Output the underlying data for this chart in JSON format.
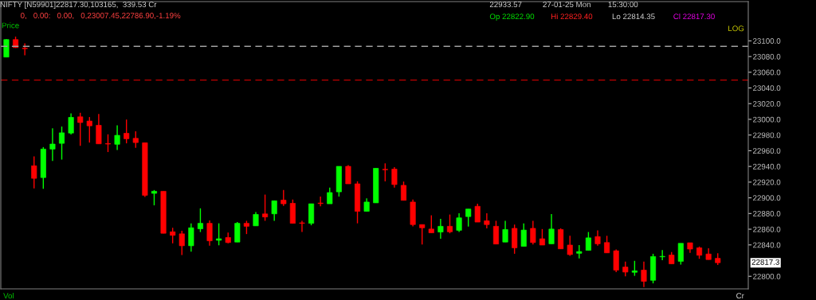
{
  "chart_data": {
    "type": "candlestick",
    "categories": [
      null,
      null,
      null,
      null,
      null,
      null,
      null,
      null,
      null,
      null,
      null,
      null,
      null,
      null,
      null,
      null,
      null,
      null,
      null,
      null,
      null,
      null,
      null,
      null,
      null,
      null,
      null,
      null,
      null,
      null,
      null,
      null,
      null,
      null,
      null,
      null,
      null,
      null,
      null,
      null,
      null,
      null,
      null,
      null,
      null,
      null,
      null,
      null,
      null,
      null,
      null,
      null,
      null,
      null,
      null,
      null,
      null,
      null,
      null,
      null,
      null,
      null,
      null,
      null,
      null,
      null,
      null,
      null,
      null,
      null,
      null,
      null,
      null,
      null,
      null,
      null,
      null,
      null
    ],
    "ohlc": [
      [
        23079.3,
        23102,
        23079,
        23101.6
      ],
      [
        23101.6,
        23105.4,
        23091,
        23091.4
      ],
      [
        23090.4,
        23096.8,
        23081.5,
        23090
      ],
      [
        22940.8,
        22952.9,
        22912.1,
        22924.8
      ],
      [
        22925.8,
        22964.6,
        22911.5,
        22962.1
      ],
      [
        22962.1,
        22988.5,
        22947.1,
        22968.5
      ],
      [
        22969.4,
        22990.8,
        22948.7,
        22982.8
      ],
      [
        22982.5,
        23007.6,
        22980.6,
        23002.5
      ],
      [
        23003.2,
        23008.3,
        22966.2,
        22995.9
      ],
      [
        22997.8,
        23002.9,
        22970.4,
        22991.7
      ],
      [
        22992.4,
        23006.7,
        22968.8,
        22968.8
      ],
      [
        22969,
        22980.9,
        22958.3,
        22968.5
      ],
      [
        22968.2,
        22992.4,
        22960.8,
        22979.6
      ],
      [
        22982.2,
        22999.7,
        22969.4,
        22975.2
      ],
      [
        22975.8,
        22984.7,
        22963.7,
        22970.4
      ],
      [
        22970.1,
        22970.1,
        22901,
        22903.2
      ],
      [
        22905.7,
        22909.9,
        22890.4,
        22908.3
      ],
      [
        22908.3,
        22908.3,
        22854.8,
        22854.8
      ],
      [
        22856.7,
        22861.8,
        22842,
        22852.2
      ],
      [
        22854.1,
        22858,
        22827,
        22838.9
      ],
      [
        22838.9,
        22867.5,
        22831.5,
        22861.8
      ],
      [
        22860.5,
        22886.6,
        22856.4,
        22867.5
      ],
      [
        22867.5,
        22871.3,
        22838.9,
        22845.2
      ],
      [
        22845.9,
        22867.5,
        22839.5,
        22847.8
      ],
      [
        22849.4,
        22855.7,
        22842,
        22843
      ],
      [
        22843.6,
        22869.1,
        22843.6,
        22867.5
      ],
      [
        22867.5,
        22870.7,
        22853.8,
        22863.7
      ],
      [
        22864.3,
        22881.8,
        22864.3,
        22878.8
      ],
      [
        22879.5,
        22904.1,
        22870.7,
        22875.6
      ],
      [
        22879.6,
        22896.2,
        22870.7,
        22896.2
      ],
      [
        22897.1,
        22909.9,
        22889.8,
        22892.4
      ],
      [
        22893,
        22897.8,
        22867.5,
        22867.5
      ],
      [
        22867.8,
        22870.7,
        22856.4,
        22867.5
      ],
      [
        22867.5,
        22892.4,
        22865,
        22892.4
      ],
      [
        22893,
        22901.6,
        22889.2,
        22892.7
      ],
      [
        22892.4,
        22913.1,
        22892.4,
        22906.7
      ],
      [
        22907.6,
        22940.1,
        22901.6,
        22940.1
      ],
      [
        22940.1,
        22941.7,
        22917.8,
        22917.8
      ],
      [
        22917.8,
        22921,
        22867.5,
        22882.8
      ],
      [
        22882.8,
        22899.4,
        22882.8,
        22894.6
      ],
      [
        22893.6,
        22937.6,
        22893.6,
        22937.6
      ],
      [
        22936.3,
        22943.9,
        22921,
        22935.7
      ],
      [
        22936.6,
        22939.2,
        22913.1,
        22916.9
      ],
      [
        22915.9,
        22920.7,
        22896.8,
        22896.8
      ],
      [
        22894.6,
        22897.8,
        22863.7,
        22865.9
      ],
      [
        22865.9,
        22865.9,
        22840.4,
        22861.8
      ],
      [
        22860.2,
        22877.7,
        22855.4,
        22855.4
      ],
      [
        22856.4,
        22873.2,
        22847.8,
        22863.7
      ],
      [
        22863.7,
        22878.7,
        22854.8,
        22856.7
      ],
      [
        22858.6,
        22880.3,
        22856.4,
        22874.5
      ],
      [
        22876.1,
        22885.7,
        22863.4,
        22885.7
      ],
      [
        22889.2,
        22892.4,
        22869.1,
        22869.1
      ],
      [
        22870.7,
        22880.3,
        22861.1,
        22865.9
      ],
      [
        22863.7,
        22870.7,
        22841.1,
        22841.1
      ],
      [
        22843.6,
        22870.7,
        22843.6,
        22859.6
      ],
      [
        22861.1,
        22865.9,
        22828.7,
        22836.3
      ],
      [
        22838.2,
        22867.5,
        22838.2,
        22858.9
      ],
      [
        22861.1,
        22870.7,
        22840.4,
        22843
      ],
      [
        22847.8,
        22860.2,
        22839.8,
        22839.8
      ],
      [
        22841.4,
        22879.3,
        22841.4,
        22860.2
      ],
      [
        22859.6,
        22861.1,
        22835,
        22835
      ],
      [
        22839.8,
        22851.6,
        22826.1,
        22827.7
      ],
      [
        22829.3,
        22839.8,
        22822.9,
        22831.5
      ],
      [
        22833.1,
        22856.4,
        22833.1,
        22849
      ],
      [
        22850.6,
        22858.6,
        22838.9,
        22841.4
      ],
      [
        22843,
        22851.6,
        22829.9,
        22829.9
      ],
      [
        22832.5,
        22834.1,
        22805.4,
        22807.9
      ],
      [
        22811.8,
        22818.8,
        22800,
        22805.4
      ],
      [
        22805.1,
        22819.7,
        22800.6,
        22807
      ],
      [
        22807.9,
        22818.8,
        22786.3,
        22793.6
      ],
      [
        22794.9,
        22828.7,
        22791,
        22825.2
      ],
      [
        22824.8,
        22833.4,
        22820.4,
        22825.2
      ],
      [
        22827.1,
        22830.9,
        22815.9,
        22815.9
      ],
      [
        22819.1,
        22842,
        22814.9,
        22842
      ],
      [
        22842.7,
        22842.7,
        22829.9,
        22834.7
      ],
      [
        22836.3,
        22837.9,
        22822.3,
        22826.8
      ],
      [
        22828.4,
        22835.7,
        22821.3,
        22821.3
      ],
      [
        22822.9,
        22829.4,
        22814.35,
        22817.3
      ]
    ],
    "colors": [
      "#00ff00",
      "#ff0000",
      "#ff0000",
      "#ff0000",
      "#00ff00",
      "#00ff00",
      "#00ff00",
      "#00ff00",
      "#ff0000",
      "#ff0000",
      "#ff0000",
      "#ff0000",
      "#00ff00",
      "#ff0000",
      "#ff0000",
      "#ff0000",
      "#00ff00",
      "#ff0000",
      "#ff0000",
      "#ff0000",
      "#00ff00",
      "#00ff00",
      "#ff0000",
      "#00ff00",
      "#ff0000",
      "#00ff00",
      "#ff0000",
      "#00ff00",
      "#ff0000",
      "#00ff00",
      "#ff0000",
      "#ff0000",
      "#ff0000",
      "#00ff00",
      "#ff0000",
      "#00ff00",
      "#00ff00",
      "#ff0000",
      "#ff0000",
      "#00ff00",
      "#00ff00",
      "#ff0000",
      "#ff0000",
      "#ff0000",
      "#ff0000",
      "#ff0000",
      "#ff0000",
      "#00ff00",
      "#ff0000",
      "#00ff00",
      "#00ff00",
      "#ff0000",
      "#ff0000",
      "#ff0000",
      "#00ff00",
      "#ff0000",
      "#00ff00",
      "#ff0000",
      "#ff0000",
      "#00ff00",
      "#ff0000",
      "#ff0000",
      "#00ff00",
      "#00ff00",
      "#ff0000",
      "#ff0000",
      "#ff0000",
      "#ff0000",
      "#00ff00",
      "#ff0000",
      "#00ff00",
      "#00ff00",
      "#ff0000",
      "#00ff00",
      "#ff0000",
      "#ff0000",
      "#ff0000",
      "#ff0000"
    ],
    "ylim": [
      22784,
      23150
    ],
    "yticks": [
      {
        "value": 22800,
        "label": "22800.0"
      },
      {
        "value": 22840,
        "label": "22840.0"
      },
      {
        "value": 22860,
        "label": "22860.0"
      },
      {
        "value": 22880,
        "label": "22880.0"
      },
      {
        "value": 22900,
        "label": "22900.0"
      },
      {
        "value": 22920,
        "label": "22920.0"
      },
      {
        "value": 22940,
        "label": "22940.0"
      },
      {
        "value": 22960,
        "label": "22960.0"
      },
      {
        "value": 22980,
        "label": "22980.0"
      },
      {
        "value": 23000,
        "label": "23000.0"
      },
      {
        "value": 23020,
        "label": "23020.0"
      },
      {
        "value": 23040,
        "label": "23040.0"
      },
      {
        "value": 23060,
        "label": "23060.0"
      },
      {
        "value": 23080,
        "label": "23080.0"
      },
      {
        "value": 23100,
        "label": "23100.0"
      }
    ],
    "tick_labels": "y",
    "ref_lines": [
      {
        "axis": "y",
        "value": 23093,
        "color": "#a0a0a0",
        "line_style": "dashed"
      },
      {
        "axis": "y",
        "value": 23050,
        "color": "#c00000",
        "line_style": "dashed"
      }
    ],
    "grid": false,
    "annotations": [
      "NIFTY [N59901]22817.30,103165,  339.53 Cr",
      "0,   0.00:   0.00,   0,23007.45,22786.90,-1.19%",
      "Price",
      "Vol",
      "LOG",
      "Cr",
      "22933.57",
      "27-01-25 Mon",
      "15:30:00",
      "Op 22822.90",
      "Hi 22829.40",
      "Lo 22814.35",
      "Cl 22817.30",
      "22817.3"
    ]
  }
}
